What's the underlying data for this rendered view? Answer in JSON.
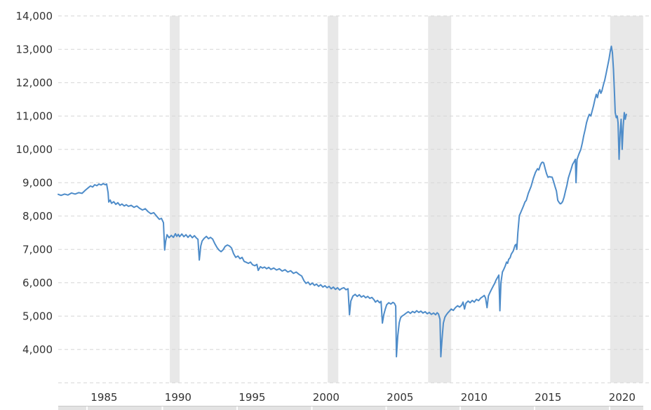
{
  "chart_data": {
    "type": "line",
    "title": "",
    "grid": "horizontal-dashed",
    "legend": "none",
    "x_range": [
      1982.8,
      2022.8
    ],
    "y_range": [
      3000,
      14000
    ],
    "y_ticks": {
      "values": [
        14000,
        13000,
        12000,
        11000,
        10000,
        9000,
        8000,
        7000,
        6000,
        5000,
        4000
      ],
      "labels": [
        "14,000",
        "13,000",
        "12,000",
        "11,000",
        "10,000",
        "9,000",
        "8,000",
        "7,000",
        "6,000",
        "5,000",
        "4,000"
      ]
    },
    "x_ticks": {
      "values": [
        1985,
        1990,
        1995,
        2000,
        2005,
        2010,
        2015,
        2020
      ],
      "labels": [
        "1985",
        "1990",
        "1995",
        "2000",
        "2005",
        "2010",
        "2015",
        "2020"
      ]
    },
    "recession_bands": [
      [
        1990.34,
        1991.0
      ],
      [
        2001.01,
        2001.72
      ],
      [
        2007.79,
        2009.35
      ],
      [
        2020.09,
        2022.32
      ]
    ],
    "series": [
      [
        1982.8,
        8650
      ],
      [
        1982.99,
        8620
      ],
      [
        1983.23,
        8660
      ],
      [
        1983.46,
        8630
      ],
      [
        1983.7,
        8690
      ],
      [
        1983.94,
        8660
      ],
      [
        1984.18,
        8700
      ],
      [
        1984.41,
        8680
      ],
      [
        1984.65,
        8780
      ],
      [
        1984.84,
        8850
      ],
      [
        1984.98,
        8900
      ],
      [
        1985.12,
        8870
      ],
      [
        1985.27,
        8940
      ],
      [
        1985.41,
        8910
      ],
      [
        1985.55,
        8960
      ],
      [
        1985.69,
        8930
      ],
      [
        1985.84,
        8970
      ],
      [
        1985.98,
        8940
      ],
      [
        1986.07,
        8960
      ],
      [
        1986.17,
        8700
      ],
      [
        1986.21,
        8420
      ],
      [
        1986.31,
        8480
      ],
      [
        1986.4,
        8380
      ],
      [
        1986.55,
        8430
      ],
      [
        1986.69,
        8350
      ],
      [
        1986.83,
        8400
      ],
      [
        1986.97,
        8320
      ],
      [
        1987.11,
        8360
      ],
      [
        1987.26,
        8300
      ],
      [
        1987.4,
        8340
      ],
      [
        1987.54,
        8290
      ],
      [
        1987.73,
        8320
      ],
      [
        1987.92,
        8260
      ],
      [
        1988.11,
        8300
      ],
      [
        1988.3,
        8230
      ],
      [
        1988.49,
        8180
      ],
      [
        1988.68,
        8220
      ],
      [
        1988.87,
        8130
      ],
      [
        1989.06,
        8070
      ],
      [
        1989.25,
        8100
      ],
      [
        1989.44,
        8000
      ],
      [
        1989.63,
        7900
      ],
      [
        1989.77,
        7930
      ],
      [
        1989.91,
        7800
      ],
      [
        1989.99,
        6980
      ],
      [
        1990.06,
        7250
      ],
      [
        1990.15,
        7440
      ],
      [
        1990.29,
        7350
      ],
      [
        1990.44,
        7420
      ],
      [
        1990.58,
        7360
      ],
      [
        1990.72,
        7470
      ],
      [
        1990.81,
        7390
      ],
      [
        1990.91,
        7450
      ],
      [
        1991.0,
        7380
      ],
      [
        1991.15,
        7460
      ],
      [
        1991.29,
        7380
      ],
      [
        1991.43,
        7440
      ],
      [
        1991.57,
        7360
      ],
      [
        1991.71,
        7430
      ],
      [
        1991.86,
        7350
      ],
      [
        1992.0,
        7410
      ],
      [
        1992.14,
        7340
      ],
      [
        1992.24,
        7300
      ],
      [
        1992.33,
        6680
      ],
      [
        1992.43,
        7100
      ],
      [
        1992.52,
        7250
      ],
      [
        1992.66,
        7330
      ],
      [
        1992.81,
        7390
      ],
      [
        1992.95,
        7320
      ],
      [
        1993.09,
        7360
      ],
      [
        1993.23,
        7310
      ],
      [
        1993.37,
        7180
      ],
      [
        1993.52,
        7060
      ],
      [
        1993.66,
        6980
      ],
      [
        1993.8,
        6930
      ],
      [
        1993.94,
        6990
      ],
      [
        1994.08,
        7090
      ],
      [
        1994.23,
        7130
      ],
      [
        1994.37,
        7100
      ],
      [
        1994.51,
        7040
      ],
      [
        1994.65,
        6870
      ],
      [
        1994.79,
        6760
      ],
      [
        1994.94,
        6800
      ],
      [
        1995.08,
        6720
      ],
      [
        1995.22,
        6760
      ],
      [
        1995.36,
        6640
      ],
      [
        1995.51,
        6610
      ],
      [
        1995.65,
        6580
      ],
      [
        1995.79,
        6620
      ],
      [
        1995.93,
        6540
      ],
      [
        1996.08,
        6510
      ],
      [
        1996.22,
        6550
      ],
      [
        1996.31,
        6370
      ],
      [
        1996.46,
        6480
      ],
      [
        1996.6,
        6440
      ],
      [
        1996.74,
        6470
      ],
      [
        1996.88,
        6420
      ],
      [
        1997.02,
        6460
      ],
      [
        1997.17,
        6400
      ],
      [
        1997.36,
        6440
      ],
      [
        1997.55,
        6380
      ],
      [
        1997.74,
        6420
      ],
      [
        1997.93,
        6350
      ],
      [
        1998.12,
        6390
      ],
      [
        1998.31,
        6320
      ],
      [
        1998.5,
        6360
      ],
      [
        1998.69,
        6280
      ],
      [
        1998.88,
        6320
      ],
      [
        1999.07,
        6250
      ],
      [
        1999.25,
        6200
      ],
      [
        1999.4,
        6060
      ],
      [
        1999.54,
        5980
      ],
      [
        1999.68,
        6020
      ],
      [
        1999.82,
        5940
      ],
      [
        1999.97,
        5990
      ],
      [
        2000.11,
        5920
      ],
      [
        2000.25,
        5960
      ],
      [
        2000.39,
        5890
      ],
      [
        2000.53,
        5940
      ],
      [
        2000.68,
        5870
      ],
      [
        2000.82,
        5910
      ],
      [
        2000.96,
        5850
      ],
      [
        2001.1,
        5890
      ],
      [
        2001.24,
        5820
      ],
      [
        2001.39,
        5870
      ],
      [
        2001.53,
        5800
      ],
      [
        2001.67,
        5850
      ],
      [
        2001.81,
        5780
      ],
      [
        2001.96,
        5830
      ],
      [
        2002.1,
        5850
      ],
      [
        2002.24,
        5790
      ],
      [
        2002.38,
        5820
      ],
      [
        2002.48,
        5040
      ],
      [
        2002.57,
        5450
      ],
      [
        2002.71,
        5600
      ],
      [
        2002.86,
        5650
      ],
      [
        2003.0,
        5590
      ],
      [
        2003.14,
        5640
      ],
      [
        2003.28,
        5570
      ],
      [
        2003.43,
        5610
      ],
      [
        2003.57,
        5550
      ],
      [
        2003.71,
        5590
      ],
      [
        2003.85,
        5530
      ],
      [
        2003.99,
        5560
      ],
      [
        2004.13,
        5490
      ],
      [
        2004.23,
        5420
      ],
      [
        2004.37,
        5470
      ],
      [
        2004.51,
        5400
      ],
      [
        2004.61,
        5440
      ],
      [
        2004.7,
        4790
      ],
      [
        2004.8,
        5050
      ],
      [
        2004.89,
        5200
      ],
      [
        2004.99,
        5340
      ],
      [
        2005.13,
        5400
      ],
      [
        2005.27,
        5360
      ],
      [
        2005.41,
        5410
      ],
      [
        2005.51,
        5380
      ],
      [
        2005.6,
        5300
      ],
      [
        2005.65,
        3780
      ],
      [
        2005.74,
        4400
      ],
      [
        2005.84,
        4800
      ],
      [
        2005.93,
        4950
      ],
      [
        2006.03,
        5000
      ],
      [
        2006.17,
        5040
      ],
      [
        2006.31,
        5090
      ],
      [
        2006.45,
        5130
      ],
      [
        2006.59,
        5080
      ],
      [
        2006.74,
        5140
      ],
      [
        2006.88,
        5100
      ],
      [
        2007.02,
        5160
      ],
      [
        2007.16,
        5110
      ],
      [
        2007.3,
        5150
      ],
      [
        2007.44,
        5090
      ],
      [
        2007.59,
        5130
      ],
      [
        2007.73,
        5070
      ],
      [
        2007.87,
        5110
      ],
      [
        2008.01,
        5050
      ],
      [
        2008.16,
        5090
      ],
      [
        2008.3,
        5040
      ],
      [
        2008.4,
        5100
      ],
      [
        2008.49,
        5060
      ],
      [
        2008.59,
        4900
      ],
      [
        2008.65,
        3780
      ],
      [
        2008.73,
        4300
      ],
      [
        2008.82,
        4790
      ],
      [
        2008.92,
        4960
      ],
      [
        2009.01,
        5030
      ],
      [
        2009.11,
        5090
      ],
      [
        2009.21,
        5140
      ],
      [
        2009.35,
        5210
      ],
      [
        2009.49,
        5170
      ],
      [
        2009.63,
        5250
      ],
      [
        2009.78,
        5310
      ],
      [
        2009.92,
        5270
      ],
      [
        2010.06,
        5330
      ],
      [
        2010.15,
        5420
      ],
      [
        2010.25,
        5210
      ],
      [
        2010.34,
        5380
      ],
      [
        2010.49,
        5450
      ],
      [
        2010.63,
        5400
      ],
      [
        2010.77,
        5470
      ],
      [
        2010.91,
        5420
      ],
      [
        2011.05,
        5500
      ],
      [
        2011.2,
        5460
      ],
      [
        2011.34,
        5540
      ],
      [
        2011.48,
        5580
      ],
      [
        2011.58,
        5620
      ],
      [
        2011.67,
        5540
      ],
      [
        2011.77,
        5250
      ],
      [
        2011.86,
        5600
      ],
      [
        2011.96,
        5700
      ],
      [
        2012.05,
        5780
      ],
      [
        2012.19,
        5900
      ],
      [
        2012.29,
        5980
      ],
      [
        2012.38,
        6080
      ],
      [
        2012.47,
        6150
      ],
      [
        2012.57,
        6230
      ],
      [
        2012.64,
        5160
      ],
      [
        2012.71,
        6000
      ],
      [
        2012.81,
        6320
      ],
      [
        2012.9,
        6400
      ],
      [
        2013.0,
        6500
      ],
      [
        2013.09,
        6620
      ],
      [
        2013.16,
        6580
      ],
      [
        2013.23,
        6700
      ],
      [
        2013.33,
        6750
      ],
      [
        2013.4,
        6850
      ],
      [
        2013.47,
        6900
      ],
      [
        2013.54,
        6950
      ],
      [
        2013.61,
        7050
      ],
      [
        2013.66,
        7120
      ],
      [
        2013.73,
        7150
      ],
      [
        2013.78,
        7000
      ],
      [
        2013.85,
        7500
      ],
      [
        2013.95,
        8010
      ],
      [
        2014.04,
        8100
      ],
      [
        2014.23,
        8300
      ],
      [
        2014.33,
        8420
      ],
      [
        2014.42,
        8470
      ],
      [
        2014.56,
        8680
      ],
      [
        2014.75,
        8890
      ],
      [
        2014.9,
        9130
      ],
      [
        2015.04,
        9310
      ],
      [
        2015.18,
        9420
      ],
      [
        2015.27,
        9380
      ],
      [
        2015.37,
        9520
      ],
      [
        2015.46,
        9600
      ],
      [
        2015.53,
        9615
      ],
      [
        2015.6,
        9590
      ],
      [
        2015.7,
        9415
      ],
      [
        2015.79,
        9270
      ],
      [
        2015.89,
        9160
      ],
      [
        2015.98,
        9180
      ],
      [
        2016.08,
        9170
      ],
      [
        2016.17,
        9165
      ],
      [
        2016.27,
        9030
      ],
      [
        2016.36,
        8890
      ],
      [
        2016.46,
        8750
      ],
      [
        2016.55,
        8470
      ],
      [
        2016.65,
        8400
      ],
      [
        2016.72,
        8365
      ],
      [
        2016.79,
        8380
      ],
      [
        2016.88,
        8435
      ],
      [
        2016.98,
        8575
      ],
      [
        2017.07,
        8750
      ],
      [
        2017.17,
        8925
      ],
      [
        2017.26,
        9135
      ],
      [
        2017.36,
        9275
      ],
      [
        2017.45,
        9400
      ],
      [
        2017.55,
        9550
      ],
      [
        2017.64,
        9615
      ],
      [
        2017.74,
        9700
      ],
      [
        2017.78,
        9000
      ],
      [
        2017.85,
        9700
      ],
      [
        2017.97,
        9850
      ],
      [
        2018.11,
        10000
      ],
      [
        2018.21,
        10200
      ],
      [
        2018.3,
        10400
      ],
      [
        2018.4,
        10600
      ],
      [
        2018.49,
        10800
      ],
      [
        2018.59,
        10950
      ],
      [
        2018.68,
        11050
      ],
      [
        2018.78,
        11000
      ],
      [
        2018.87,
        11150
      ],
      [
        2018.96,
        11300
      ],
      [
        2019.06,
        11500
      ],
      [
        2019.15,
        11650
      ],
      [
        2019.23,
        11550
      ],
      [
        2019.3,
        11700
      ],
      [
        2019.39,
        11790
      ],
      [
        2019.46,
        11680
      ],
      [
        2019.53,
        11750
      ],
      [
        2019.63,
        11930
      ],
      [
        2019.72,
        12070
      ],
      [
        2019.82,
        12280
      ],
      [
        2019.91,
        12480
      ],
      [
        2020.01,
        12700
      ],
      [
        2020.1,
        12950
      ],
      [
        2020.17,
        13090
      ],
      [
        2020.24,
        12900
      ],
      [
        2020.31,
        12400
      ],
      [
        2020.38,
        11700
      ],
      [
        2020.43,
        11100
      ],
      [
        2020.5,
        10950
      ],
      [
        2020.57,
        11000
      ],
      [
        2020.62,
        10800
      ],
      [
        2020.69,
        9700
      ],
      [
        2020.76,
        10500
      ],
      [
        2020.83,
        10900
      ],
      [
        2020.9,
        10000
      ],
      [
        2020.97,
        10700
      ],
      [
        2021.04,
        11100
      ],
      [
        2021.11,
        10900
      ],
      [
        2021.18,
        11050
      ]
    ]
  },
  "colors": {
    "background": "#ffffff",
    "line": "#4e8cc9",
    "gridline": "#d6d6d6",
    "recession_band": "#e8e8e8",
    "tick_text": "#333333",
    "range_selector_fill": "#e3e3e3",
    "range_selector_border": "#c9c9c9",
    "range_selector_divider": "#ffffff"
  },
  "range_selector": {
    "divider_years": [
      1985,
      1990,
      1995,
      2000,
      2005,
      2010,
      2015,
      2020
    ]
  }
}
